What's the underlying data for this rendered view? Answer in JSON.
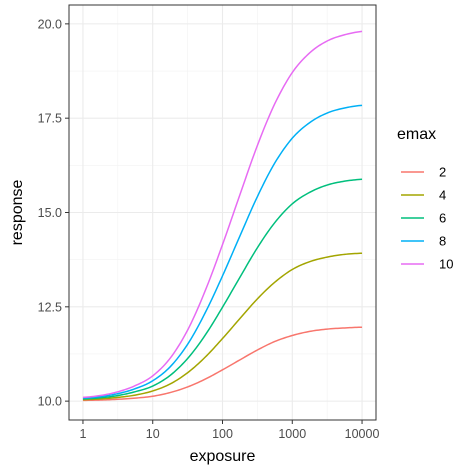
{
  "chart_data": {
    "type": "line",
    "xlabel": "exposure",
    "ylabel": "response",
    "xscale": "log10",
    "xlim": [
      1,
      10000
    ],
    "ylim": [
      10,
      20
    ],
    "x_ticks": [
      1,
      10,
      100,
      1000,
      10000
    ],
    "x_tick_labels": [
      "1",
      "10",
      "100",
      "1000",
      "10000"
    ],
    "y_ticks": [
      10,
      12.5,
      15,
      17.5,
      20
    ],
    "y_tick_labels": [
      "10.0",
      "12.5",
      "15.0",
      "17.5",
      "20.0"
    ],
    "grid": true,
    "theme": "bw",
    "legend": {
      "title": "emax",
      "position": "right"
    },
    "x": [
      1,
      1.8,
      3.2,
      5.6,
      10,
      18,
      32,
      56,
      100,
      180,
      320,
      560,
      1000,
      1800,
      3200,
      5600,
      10000
    ],
    "series": [
      {
        "name": "2",
        "color": "#F8766D",
        "values": [
          10.02,
          10.03,
          10.05,
          10.08,
          10.13,
          10.23,
          10.38,
          10.58,
          10.83,
          11.1,
          11.36,
          11.58,
          11.74,
          11.85,
          11.91,
          11.94,
          11.96
        ]
      },
      {
        "name": "4",
        "color": "#A3A500",
        "values": [
          10.04,
          10.06,
          10.1,
          10.16,
          10.27,
          10.46,
          10.76,
          11.16,
          11.66,
          12.2,
          12.72,
          13.15,
          13.49,
          13.7,
          13.82,
          13.89,
          13.92
        ]
      },
      {
        "name": "6",
        "color": "#00BF7D",
        "values": [
          10.06,
          10.09,
          10.15,
          10.25,
          10.4,
          10.69,
          11.14,
          11.74,
          12.49,
          13.3,
          14.08,
          14.73,
          15.23,
          15.54,
          15.73,
          15.83,
          15.88
        ]
      },
      {
        "name": "8",
        "color": "#00B0F6",
        "values": [
          10.08,
          10.12,
          10.2,
          10.33,
          10.54,
          10.92,
          11.52,
          12.33,
          13.32,
          14.4,
          15.44,
          16.31,
          16.97,
          17.39,
          17.64,
          17.77,
          17.84
        ]
      },
      {
        "name": "10",
        "color": "#E76BF3",
        "values": [
          10.1,
          10.15,
          10.25,
          10.41,
          10.67,
          11.15,
          11.9,
          12.91,
          14.15,
          15.5,
          16.8,
          17.88,
          18.71,
          19.24,
          19.55,
          19.71,
          19.8
        ]
      }
    ]
  }
}
